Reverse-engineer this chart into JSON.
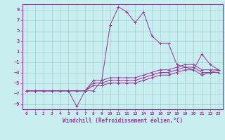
{
  "title": "",
  "xlabel": "Windchill (Refroidissement éolien,°C)",
  "ylabel": "",
  "bg_color": "#c8eef0",
  "grid_color": "#a0d0d4",
  "line_color": "#993399",
  "spine_color": "#993399",
  "xlim": [
    -0.5,
    23.5
  ],
  "ylim": [
    -10,
    10
  ],
  "xticks": [
    0,
    1,
    2,
    3,
    4,
    5,
    6,
    7,
    8,
    9,
    10,
    11,
    12,
    13,
    14,
    15,
    16,
    17,
    18,
    19,
    20,
    21,
    22,
    23
  ],
  "yticks": [
    -9,
    -7,
    -5,
    -3,
    -1,
    1,
    3,
    5,
    7,
    9
  ],
  "series": [
    [
      0,
      1,
      2,
      3,
      4,
      5,
      6,
      7,
      8,
      9,
      10,
      11,
      12,
      13,
      14,
      15,
      16,
      17,
      18,
      19,
      20,
      21,
      22,
      23
    ],
    [
      -6.5,
      -6.5,
      -6.5,
      -6.5,
      -6.5,
      -6.5,
      -9.5,
      -6.5,
      -6.5,
      -4.5,
      6.0,
      9.5,
      8.5,
      6.5,
      8.5,
      4.0,
      2.5,
      2.5,
      -1.5,
      -2.0,
      -2.5,
      0.5,
      -1.5,
      -2.5
    ],
    [
      -6.5,
      -6.5,
      -6.5,
      -6.5,
      -6.5,
      -6.5,
      -6.5,
      -6.5,
      -4.5,
      -4.5,
      -4.0,
      -4.0,
      -4.0,
      -4.0,
      -3.5,
      -3.0,
      -2.5,
      -2.5,
      -2.0,
      -1.5,
      -1.5,
      -2.5,
      -2.5,
      -2.5
    ],
    [
      -6.5,
      -6.5,
      -6.5,
      -6.5,
      -6.5,
      -6.5,
      -6.5,
      -6.5,
      -5.0,
      -5.0,
      -4.5,
      -4.5,
      -4.5,
      -4.5,
      -4.0,
      -3.5,
      -3.0,
      -3.0,
      -2.5,
      -2.0,
      -2.0,
      -3.0,
      -3.0,
      -2.5
    ],
    [
      -6.5,
      -6.5,
      -6.5,
      -6.5,
      -6.5,
      -6.5,
      -6.5,
      -6.5,
      -5.5,
      -5.5,
      -5.0,
      -5.0,
      -5.0,
      -5.0,
      -4.5,
      -4.0,
      -3.5,
      -3.5,
      -3.0,
      -2.5,
      -2.5,
      -3.5,
      -3.0,
      -3.0
    ]
  ]
}
